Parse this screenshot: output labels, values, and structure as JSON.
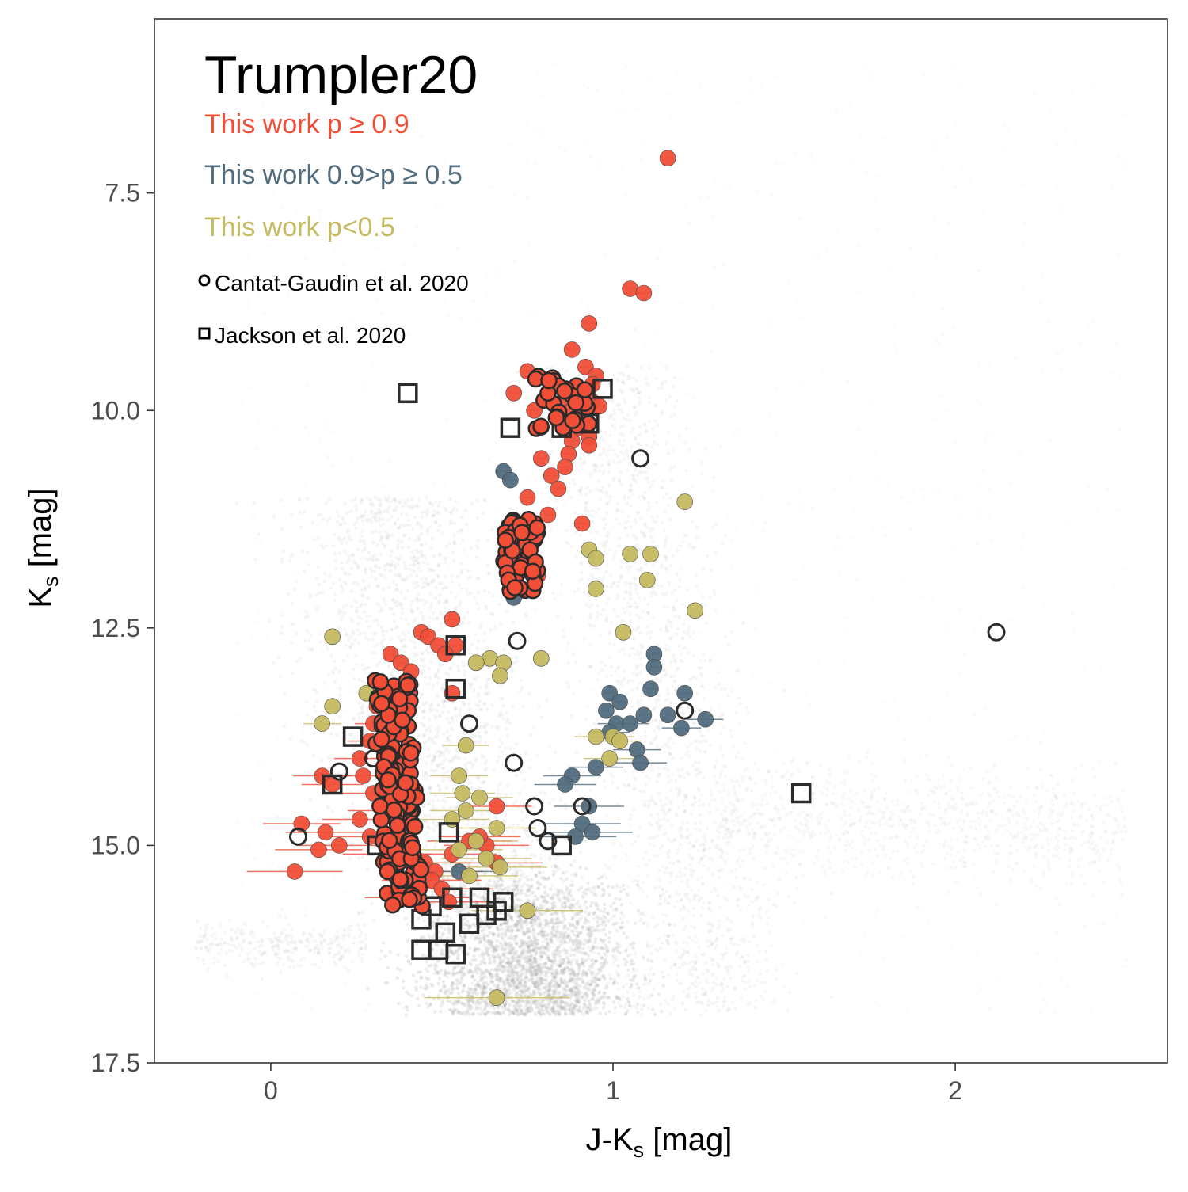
{
  "chart_data": {
    "type": "scatter",
    "title": "Trumpler20",
    "xlabel": "J-K",
    "xlabel_sub": "s",
    "xlabel_suffix": " [mag]",
    "ylabel": "K",
    "ylabel_sub": "s",
    "ylabel_suffix": " [mag]",
    "xlim": [
      -0.34,
      2.62
    ],
    "ylim": [
      17.5,
      5.5
    ],
    "y_inverted": true,
    "x_ticks": [
      0,
      1,
      2
    ],
    "x_tick_labels": [
      "0",
      "1",
      "2"
    ],
    "y_ticks": [
      7.5,
      10.0,
      12.5,
      15.0,
      17.5
    ],
    "y_tick_labels": [
      "7.5",
      "10.0",
      "12.5",
      "15.0",
      "17.5"
    ],
    "grid": false,
    "legend_position": "top-left",
    "colors": {
      "high": "#f04e37",
      "mid": "#526d7e",
      "low": "#c5bb62",
      "field": "#a9a9a9",
      "outline": "#2b2b2b"
    },
    "legend": [
      {
        "label": "This work p ≥ 0.9",
        "color": "#f04e37",
        "kind": "text"
      },
      {
        "label": "This work 0.9>p ≥ 0.5",
        "color": "#526d7e",
        "kind": "text"
      },
      {
        "label": "This work p<0.5",
        "color": "#c5bb62",
        "kind": "text"
      },
      {
        "label": "Cantat-Gaudin et al. 2020",
        "color": "#000000",
        "kind": "circle"
      },
      {
        "label": "Jackson et al. 2020",
        "color": "#000000",
        "kind": "square"
      }
    ],
    "series": [
      {
        "name": "This work p ≥ 0.9",
        "color": "#f04e37",
        "points": [
          {
            "x": 1.16,
            "y": 7.1
          },
          {
            "x": 1.05,
            "y": 8.6
          },
          {
            "x": 1.09,
            "y": 8.65
          },
          {
            "x": 0.93,
            "y": 9.0
          },
          {
            "x": 0.88,
            "y": 9.3
          },
          {
            "x": 0.92,
            "y": 9.5
          },
          {
            "x": 0.95,
            "y": 9.6
          },
          {
            "x": 0.94,
            "y": 9.7
          },
          {
            "x": 0.9,
            "y": 9.8
          },
          {
            "x": 0.94,
            "y": 9.9
          },
          {
            "x": 0.86,
            "y": 9.85
          },
          {
            "x": 0.96,
            "y": 9.95
          },
          {
            "x": 0.88,
            "y": 10.0
          },
          {
            "x": 0.92,
            "y": 10.05
          },
          {
            "x": 0.84,
            "y": 10.1
          },
          {
            "x": 0.9,
            "y": 10.2
          },
          {
            "x": 0.93,
            "y": 10.3
          },
          {
            "x": 0.88,
            "y": 10.35
          },
          {
            "x": 0.75,
            "y": 9.55
          },
          {
            "x": 0.71,
            "y": 9.8
          },
          {
            "x": 0.77,
            "y": 10.0
          },
          {
            "x": 0.93,
            "y": 10.4
          },
          {
            "x": 0.87,
            "y": 10.5
          },
          {
            "x": 0.79,
            "y": 10.55
          },
          {
            "x": 0.86,
            "y": 10.65
          },
          {
            "x": 0.82,
            "y": 10.75
          },
          {
            "x": 0.84,
            "y": 10.9
          },
          {
            "x": 0.75,
            "y": 11.0
          },
          {
            "x": 0.81,
            "y": 11.2
          },
          {
            "x": 0.77,
            "y": 11.3
          },
          {
            "x": 0.91,
            "y": 11.3
          },
          {
            "x": 0.7,
            "y": 11.6
          },
          {
            "x": 0.74,
            "y": 11.7
          },
          {
            "x": 0.69,
            "y": 11.8
          },
          {
            "x": 0.78,
            "y": 11.9
          },
          {
            "x": 0.72,
            "y": 12.0
          },
          {
            "x": 0.53,
            "y": 12.4
          },
          {
            "x": 0.44,
            "y": 12.55
          },
          {
            "x": 0.46,
            "y": 12.6
          },
          {
            "x": 0.49,
            "y": 12.7
          },
          {
            "x": 0.54,
            "y": 12.7
          },
          {
            "x": 0.35,
            "y": 12.8
          },
          {
            "x": 0.51,
            "y": 12.8
          },
          {
            "x": 0.38,
            "y": 12.9
          },
          {
            "x": 0.41,
            "y": 13.0
          },
          {
            "x": 0.53,
            "y": 13.25
          },
          {
            "x": 0.31,
            "y": 13.4
          },
          {
            "x": 0.3,
            "y": 13.6
          },
          {
            "x": 0.29,
            "y": 13.8
          },
          {
            "x": 0.26,
            "y": 14.0
          },
          {
            "x": 0.27,
            "y": 14.2
          },
          {
            "x": 0.15,
            "y": 14.2
          },
          {
            "x": 0.18,
            "y": 14.3
          },
          {
            "x": 0.3,
            "y": 14.4
          },
          {
            "x": 0.33,
            "y": 14.6
          },
          {
            "x": 0.26,
            "y": 14.7
          },
          {
            "x": 0.09,
            "y": 14.75
          },
          {
            "x": 0.16,
            "y": 14.85
          },
          {
            "x": 0.29,
            "y": 14.9
          },
          {
            "x": 0.2,
            "y": 15.0
          },
          {
            "x": 0.14,
            "y": 15.05
          },
          {
            "x": 0.07,
            "y": 15.3
          },
          {
            "x": 0.34,
            "y": 15.1
          },
          {
            "x": 0.45,
            "y": 15.2
          },
          {
            "x": 0.48,
            "y": 15.3
          },
          {
            "x": 0.63,
            "y": 15.0
          },
          {
            "x": 0.66,
            "y": 15.2
          },
          {
            "x": 0.61,
            "y": 14.9
          },
          {
            "x": 0.58,
            "y": 14.95
          },
          {
            "x": 0.53,
            "y": 15.1
          },
          {
            "x": 0.47,
            "y": 15.4
          },
          {
            "x": 0.5,
            "y": 15.5
          },
          {
            "x": 0.43,
            "y": 15.6
          },
          {
            "x": 0.52,
            "y": 15.65
          },
          {
            "x": 0.66,
            "y": 14.55
          }
        ]
      },
      {
        "name": "This work 0.9>p ≥ 0.5",
        "color": "#526d7e",
        "points": [
          {
            "x": 0.68,
            "y": 10.7
          },
          {
            "x": 0.7,
            "y": 10.8
          },
          {
            "x": 0.71,
            "y": 12.15
          },
          {
            "x": 1.12,
            "y": 12.8
          },
          {
            "x": 1.12,
            "y": 12.95
          },
          {
            "x": 1.11,
            "y": 13.2
          },
          {
            "x": 1.21,
            "y": 13.25
          },
          {
            "x": 0.99,
            "y": 13.25
          },
          {
            "x": 1.02,
            "y": 13.35
          },
          {
            "x": 0.98,
            "y": 13.45
          },
          {
            "x": 1.09,
            "y": 13.5
          },
          {
            "x": 1.16,
            "y": 13.5
          },
          {
            "x": 1.27,
            "y": 13.55
          },
          {
            "x": 1.01,
            "y": 13.6
          },
          {
            "x": 1.05,
            "y": 13.6
          },
          {
            "x": 1.2,
            "y": 13.65
          },
          {
            "x": 0.99,
            "y": 13.7
          },
          {
            "x": 1.07,
            "y": 13.9
          },
          {
            "x": 1.08,
            "y": 14.05
          },
          {
            "x": 0.95,
            "y": 14.1
          },
          {
            "x": 0.88,
            "y": 14.2
          },
          {
            "x": 0.86,
            "y": 14.3
          },
          {
            "x": 0.93,
            "y": 14.55
          },
          {
            "x": 0.91,
            "y": 14.75
          },
          {
            "x": 0.94,
            "y": 14.85
          },
          {
            "x": 0.89,
            "y": 14.9
          },
          {
            "x": 0.55,
            "y": 15.3
          }
        ]
      },
      {
        "name": "This work p<0.5",
        "color": "#c5bb62",
        "points": [
          {
            "x": 1.21,
            "y": 11.05
          },
          {
            "x": 0.93,
            "y": 11.6
          },
          {
            "x": 1.05,
            "y": 11.65
          },
          {
            "x": 1.11,
            "y": 11.65
          },
          {
            "x": 0.95,
            "y": 11.7
          },
          {
            "x": 1.1,
            "y": 11.95
          },
          {
            "x": 0.95,
            "y": 12.05
          },
          {
            "x": 1.24,
            "y": 12.3
          },
          {
            "x": 1.03,
            "y": 12.55
          },
          {
            "x": 0.18,
            "y": 12.6
          },
          {
            "x": 0.64,
            "y": 12.85
          },
          {
            "x": 0.6,
            "y": 12.9
          },
          {
            "x": 0.68,
            "y": 12.9
          },
          {
            "x": 0.79,
            "y": 12.85
          },
          {
            "x": 0.67,
            "y": 13.05
          },
          {
            "x": 0.28,
            "y": 13.25
          },
          {
            "x": 0.18,
            "y": 13.4
          },
          {
            "x": 0.15,
            "y": 13.6
          },
          {
            "x": 0.95,
            "y": 13.75
          },
          {
            "x": 1.0,
            "y": 13.75
          },
          {
            "x": 1.02,
            "y": 13.8
          },
          {
            "x": 0.57,
            "y": 13.85
          },
          {
            "x": 0.99,
            "y": 14.0
          },
          {
            "x": 0.55,
            "y": 14.2
          },
          {
            "x": 0.56,
            "y": 14.4
          },
          {
            "x": 0.61,
            "y": 14.45
          },
          {
            "x": 0.57,
            "y": 14.6
          },
          {
            "x": 0.53,
            "y": 14.7
          },
          {
            "x": 0.66,
            "y": 14.8
          },
          {
            "x": 0.6,
            "y": 14.95
          },
          {
            "x": 0.55,
            "y": 15.05
          },
          {
            "x": 0.63,
            "y": 15.15
          },
          {
            "x": 0.67,
            "y": 15.25
          },
          {
            "x": 0.58,
            "y": 15.35
          },
          {
            "x": 0.75,
            "y": 15.75
          },
          {
            "x": 0.66,
            "y": 16.75
          }
        ]
      },
      {
        "name": "Cantat-Gaudin et al. 2020",
        "color": "#2b2b2b",
        "marker": "circle-open",
        "points": [
          {
            "x": 1.08,
            "y": 10.55
          },
          {
            "x": 0.72,
            "y": 12.65
          },
          {
            "x": 2.12,
            "y": 12.55
          },
          {
            "x": 1.21,
            "y": 13.45
          },
          {
            "x": 0.58,
            "y": 13.6
          },
          {
            "x": 0.71,
            "y": 14.05
          },
          {
            "x": 0.77,
            "y": 14.55
          },
          {
            "x": 0.91,
            "y": 14.55
          },
          {
            "x": 0.78,
            "y": 14.8
          },
          {
            "x": 0.81,
            "y": 14.95
          },
          {
            "x": 0.08,
            "y": 14.9
          },
          {
            "x": 0.2,
            "y": 14.15
          },
          {
            "x": 0.3,
            "y": 14.0
          },
          {
            "x": 0.35,
            "y": 13.25
          }
        ]
      },
      {
        "name": "Jackson et al. 2020",
        "color": "#2b2b2b",
        "marker": "square-open",
        "points": [
          {
            "x": 0.4,
            "y": 9.8
          },
          {
            "x": 0.7,
            "y": 10.2
          },
          {
            "x": 0.97,
            "y": 9.75
          },
          {
            "x": 0.93,
            "y": 10.15
          },
          {
            "x": 0.85,
            "y": 10.2
          },
          {
            "x": 0.54,
            "y": 12.7
          },
          {
            "x": 0.54,
            "y": 13.2
          },
          {
            "x": 0.24,
            "y": 13.75
          },
          {
            "x": 0.18,
            "y": 14.3
          },
          {
            "x": 0.52,
            "y": 14.85
          },
          {
            "x": 0.85,
            "y": 15.0
          },
          {
            "x": 0.68,
            "y": 15.65
          },
          {
            "x": 1.55,
            "y": 14.4
          },
          {
            "x": 0.47,
            "y": 15.7
          },
          {
            "x": 0.53,
            "y": 15.6
          },
          {
            "x": 0.61,
            "y": 15.6
          },
          {
            "x": 0.63,
            "y": 15.8
          },
          {
            "x": 0.44,
            "y": 15.85
          },
          {
            "x": 0.58,
            "y": 15.9
          },
          {
            "x": 0.66,
            "y": 15.75
          },
          {
            "x": 0.51,
            "y": 16.0
          },
          {
            "x": 0.44,
            "y": 16.2
          },
          {
            "x": 0.49,
            "y": 16.2
          },
          {
            "x": 0.54,
            "y": 16.25
          },
          {
            "x": 0.36,
            "y": 15.2
          },
          {
            "x": 0.31,
            "y": 15.0
          }
        ]
      }
    ]
  }
}
